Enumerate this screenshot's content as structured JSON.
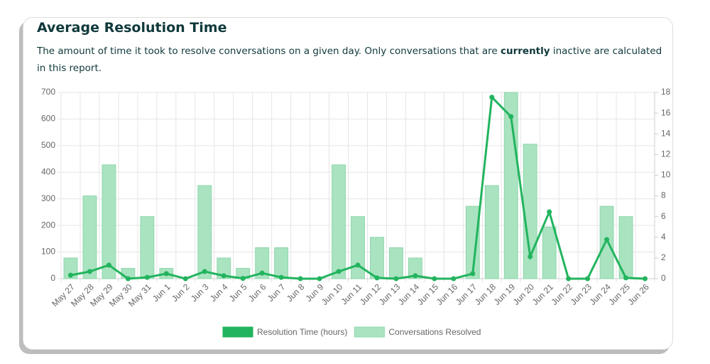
{
  "header": {
    "title": "Average Resolution Time",
    "subtitle": [
      "The amount of time it took to resolve conversations on a given day. Only conversations that are ",
      "currently",
      " inactive are calculated in this report."
    ]
  },
  "chart_data": {
    "type": "bar-line",
    "categories": [
      "May 27",
      "May 28",
      "May 29",
      "May 30",
      "May 31",
      "Jun 1",
      "Jun 2",
      "Jun 3",
      "Jun 4",
      "Jun 5",
      "Jun 6",
      "Jun 7",
      "Jun 8",
      "Jun 9",
      "Jun 10",
      "Jun 11",
      "Jun 12",
      "Jun 13",
      "Jun 14",
      "Jun 15",
      "Jun 16",
      "Jun 17",
      "Jun 18",
      "Jun 19",
      "Jun 20",
      "Jun 21",
      "Jun 22",
      "Jun 23",
      "Jun 24",
      "Jun 25",
      "Jun 26"
    ],
    "series": [
      {
        "name": "Resolution Time (hours)",
        "type": "line",
        "color": "#22b45e",
        "axis": "y",
        "values": [
          13,
          27,
          51,
          0,
          5,
          19,
          0,
          27,
          11,
          1,
          21,
          5,
          0,
          0,
          27,
          51,
          3,
          0,
          11,
          0,
          0,
          19,
          682,
          609,
          83,
          251,
          0,
          0,
          147,
          3,
          0
        ]
      },
      {
        "name": "Conversations Resolved",
        "type": "bar",
        "color": "#a9e3c0",
        "axis": "y2",
        "values": [
          2,
          8,
          11,
          1,
          6,
          1,
          0,
          9,
          2,
          1,
          3,
          3,
          0,
          0,
          11,
          6,
          4,
          3,
          2,
          0,
          0,
          7,
          9,
          18,
          13,
          5,
          0,
          0,
          7,
          6,
          0
        ]
      }
    ],
    "ylim": [
      0,
      700
    ],
    "yticks": [
      0,
      100,
      200,
      300,
      400,
      500,
      600,
      700
    ],
    "y2lim": [
      0,
      18
    ],
    "y2ticks": [
      0,
      2,
      4,
      6,
      8,
      10,
      12,
      14,
      16,
      18
    ],
    "grid": true,
    "legend": "bottom"
  }
}
